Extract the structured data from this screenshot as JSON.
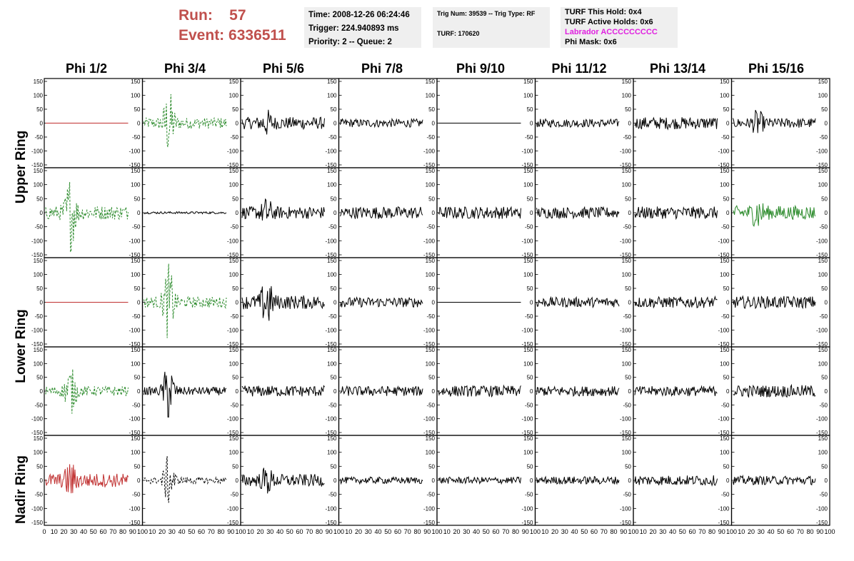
{
  "run_info": {
    "run_label": "Run:",
    "run_value": "57",
    "event_label": "Event:",
    "event_value": "6336511"
  },
  "box1": {
    "time": "Time: 2008-12-26 06:24:46",
    "trigger": "Trigger: 224.940893 ms",
    "priority": "Priority: 2 -- Queue: 2"
  },
  "box2": {
    "trig": "Trig Num: 39539 -- Trig Type: RF",
    "turf": "TURF: 170620"
  },
  "box3": {
    "hold": "TURF This Hold: 0x4",
    "active": "TURF Active Holds: 0x6",
    "labrador": "Labrador ACCCCCCCCC",
    "phimask": "Phi Mask: 0x6"
  },
  "columns": [
    "Phi 1/2",
    "Phi 3/4",
    "Phi 5/6",
    "Phi 7/8",
    "Phi 9/10",
    "Phi 11/12",
    "Phi 13/14",
    "Phi 15/16"
  ],
  "ring_labels": [
    "Upper Ring",
    "Lower Ring",
    "Nadir Ring"
  ],
  "colors": {
    "red": "#c03030",
    "green": "#2a8a2a",
    "black": "#000000",
    "run_info": "#c0504d",
    "labrador": "#e020e0"
  },
  "chart_data": {
    "type": "line",
    "rows": 5,
    "cols": 8,
    "ylim": [
      -150,
      150
    ],
    "xlim": [
      0,
      100
    ],
    "yticks": [
      "150",
      "100",
      "50",
      "0",
      "-50",
      "-100",
      "-150"
    ],
    "xticks": [
      "0",
      "10",
      "20",
      "30",
      "40",
      "50",
      "60",
      "70",
      "80",
      "90",
      "100"
    ],
    "panels": [
      [
        {
          "color": "red",
          "style": "flat",
          "amp": 0
        },
        {
          "color": "green",
          "style": "dashed-burst",
          "amp": 20,
          "burst": 120
        },
        {
          "color": "black",
          "style": "noise",
          "amp": 22,
          "burst": 35
        },
        {
          "color": "black",
          "style": "noise",
          "amp": 15
        },
        {
          "color": "black",
          "style": "flat",
          "amp": 0
        },
        {
          "color": "black",
          "style": "noise",
          "amp": 15
        },
        {
          "color": "black",
          "style": "noise",
          "amp": 22
        },
        {
          "color": "black",
          "style": "noise",
          "amp": 18,
          "burst": 40
        }
      ],
      [
        {
          "color": "green",
          "style": "dashed-burst",
          "amp": 25,
          "burst": 130
        },
        {
          "color": "black",
          "style": "noise",
          "amp": 4
        },
        {
          "color": "black",
          "style": "noise",
          "amp": 22,
          "burst": 40
        },
        {
          "color": "black",
          "style": "noise",
          "amp": 22
        },
        {
          "color": "black",
          "style": "noise",
          "amp": 22
        },
        {
          "color": "black",
          "style": "noise",
          "amp": 20
        },
        {
          "color": "black",
          "style": "noise",
          "amp": 22
        },
        {
          "color": "green",
          "style": "noise",
          "amp": 25,
          "burst": 45
        }
      ],
      [
        {
          "color": "red",
          "style": "flat",
          "amp": 0
        },
        {
          "color": "green",
          "style": "dashed-burst",
          "amp": 20,
          "burst": 135
        },
        {
          "color": "black",
          "style": "noise",
          "amp": 25,
          "burst": 85
        },
        {
          "color": "black",
          "style": "noise",
          "amp": 18
        },
        {
          "color": "black",
          "style": "flat",
          "amp": 0
        },
        {
          "color": "black",
          "style": "noise",
          "amp": 18
        },
        {
          "color": "black",
          "style": "noise",
          "amp": 20
        },
        {
          "color": "black",
          "style": "noise",
          "amp": 22
        }
      ],
      [
        {
          "color": "green",
          "style": "dashed-burst",
          "amp": 18,
          "burst": 85
        },
        {
          "color": "black",
          "style": "noise",
          "amp": 15,
          "burst": 110
        },
        {
          "color": "black",
          "style": "noise",
          "amp": 20
        },
        {
          "color": "black",
          "style": "noise",
          "amp": 18
        },
        {
          "color": "black",
          "style": "noise",
          "amp": 20
        },
        {
          "color": "black",
          "style": "noise",
          "amp": 18
        },
        {
          "color": "black",
          "style": "noise",
          "amp": 18
        },
        {
          "color": "black",
          "style": "noise",
          "amp": 22
        }
      ],
      [
        {
          "color": "red",
          "style": "noise",
          "amp": 25,
          "burst": 55
        },
        {
          "color": "black",
          "style": "dashed-burst",
          "amp": 12,
          "burst": 90
        },
        {
          "color": "black",
          "style": "noise",
          "amp": 22,
          "burst": 40
        },
        {
          "color": "black",
          "style": "noise",
          "amp": 12
        },
        {
          "color": "black",
          "style": "noise",
          "amp": 12
        },
        {
          "color": "black",
          "style": "noise",
          "amp": 14
        },
        {
          "color": "black",
          "style": "noise",
          "amp": 18
        },
        {
          "color": "black",
          "style": "noise",
          "amp": 16
        }
      ]
    ]
  }
}
